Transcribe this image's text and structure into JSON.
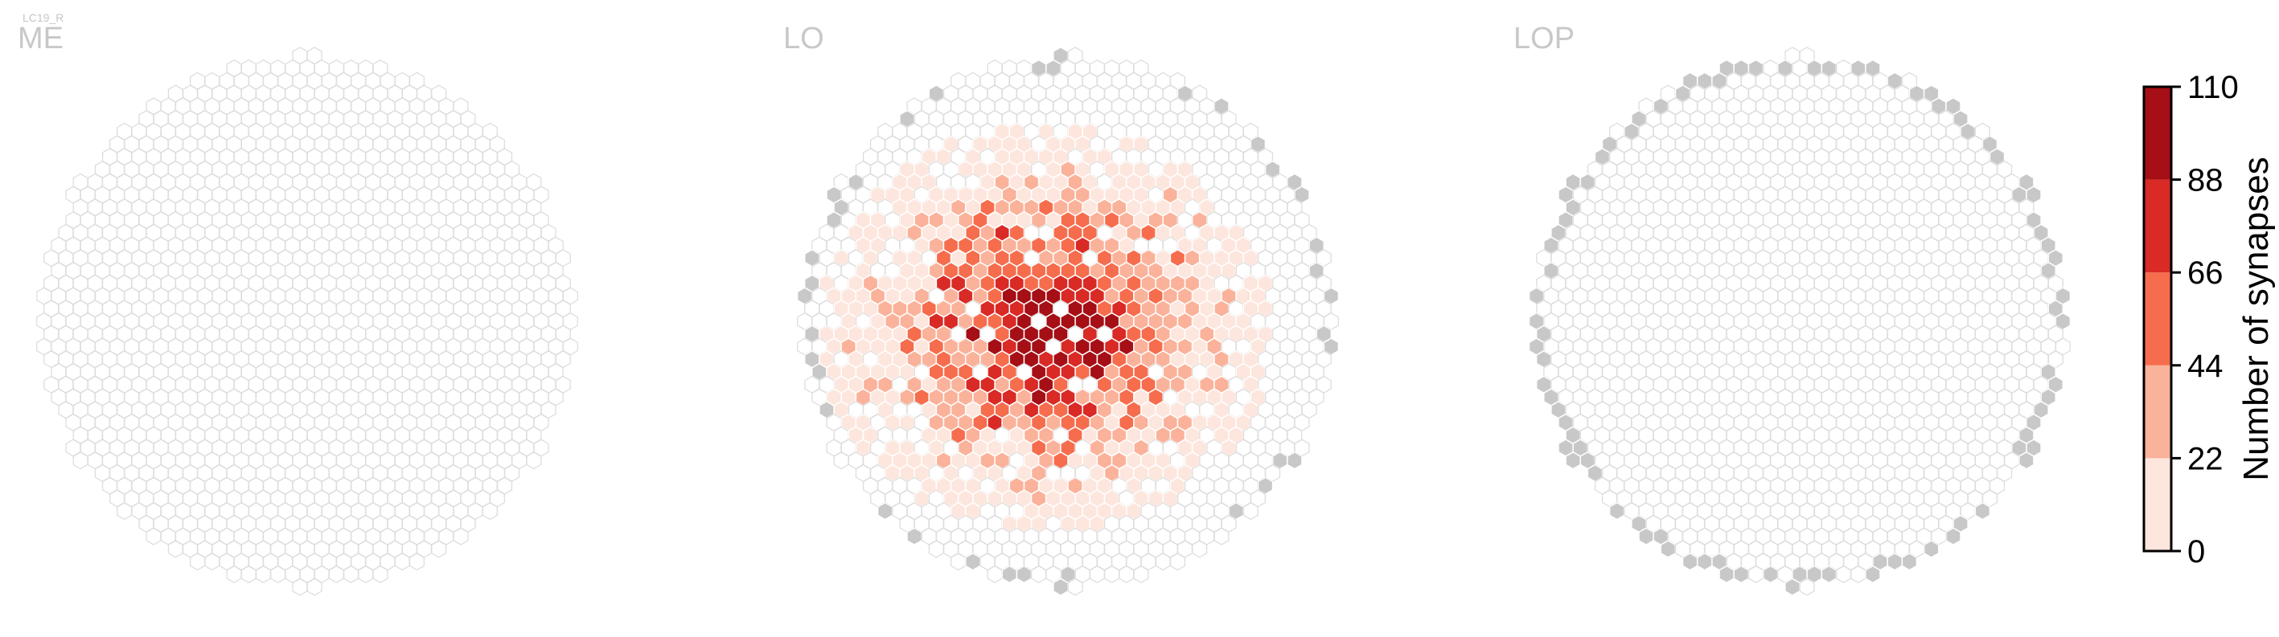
{
  "figure": {
    "cell_type": "LC19_R"
  },
  "colors": {
    "empty_stroke": "#dddddd",
    "empty_fill": "#ffffff",
    "boundary_fill": "#c8c8c8",
    "bins": [
      "#fde6dd",
      "#fbb29a",
      "#f66d4d",
      "#d92a26",
      "#a50f15"
    ]
  },
  "chart_data": {
    "type": "heatmap",
    "subtype": "hexagonal column map",
    "panels": [
      {
        "region": "ME",
        "max_synapses": 0,
        "core_cells": [],
        "boundary_gray_cells": 0
      },
      {
        "region": "LO",
        "max_synapses": 110,
        "peak_cells": 10,
        "boundary_gray_cells": 20
      },
      {
        "region": "LOP",
        "max_synapses": 0,
        "boundary_gray_cells": 62
      }
    ],
    "colorbar": {
      "label": "Number of synapses",
      "ticks": [
        0,
        22,
        44,
        66,
        88,
        110
      ],
      "range": [
        0,
        110
      ],
      "bins": 5
    }
  }
}
